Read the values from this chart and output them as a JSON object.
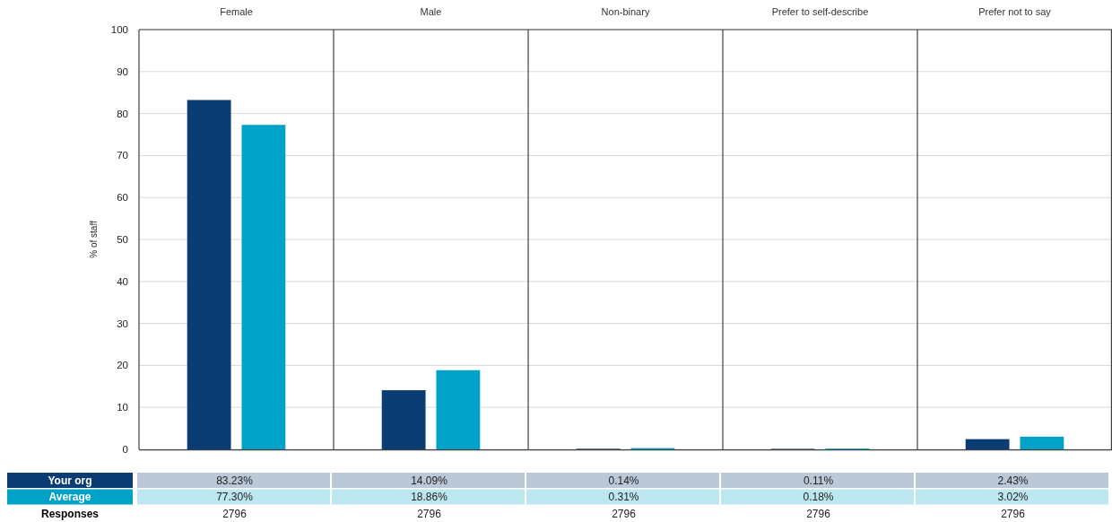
{
  "chart_data": {
    "type": "bar",
    "ylabel": "% of staff",
    "categories": [
      "Female",
      "Male",
      "Non-binary",
      "Prefer to self-describe",
      "Prefer not to say"
    ],
    "series": [
      {
        "name": "Your org",
        "color": "#0b3c73",
        "values": [
          83.23,
          14.09,
          0.14,
          0.11,
          2.43
        ],
        "value_labels": [
          "83.23%",
          "14.09%",
          "0.14%",
          "0.11%",
          "2.43%"
        ]
      },
      {
        "name": "Average",
        "color": "#00a3c7",
        "values": [
          77.3,
          18.86,
          0.31,
          0.18,
          3.02
        ],
        "value_labels": [
          "77.30%",
          "18.86%",
          "0.31%",
          "0.18%",
          "3.02%"
        ]
      }
    ],
    "ylim": [
      0,
      100
    ],
    "yticks": [
      0,
      10,
      20,
      30,
      40,
      50,
      60,
      70,
      80,
      90,
      100
    ],
    "grid": "y",
    "legend": "bottom",
    "annotations": [
      "Responses",
      "2796",
      "2796",
      "2796",
      "2796",
      "2796"
    ]
  }
}
